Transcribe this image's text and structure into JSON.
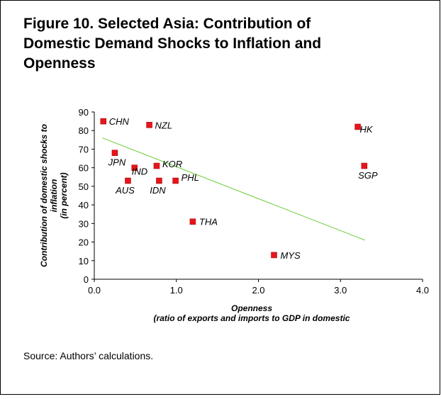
{
  "chart_data": {
    "type": "scatter",
    "title": [
      "Figure 10. Selected Asia: Contribution of",
      "Domestic Demand Shocks to Inflation and",
      "Openness"
    ],
    "x_label": [
      "Openness",
      "(ratio of exports and imports to GDP in domestic"
    ],
    "y_label": [
      "Contribution of domestic shocks to",
      "inflation",
      "(in percent)"
    ],
    "source": "Source: Authors’ calculations.",
    "color": "#e8141b",
    "trend_color": "#66cc33",
    "labels": [
      "CHN",
      "NZL",
      "HK",
      "JPN",
      "IND",
      "KOR",
      "SGP",
      "AUS",
      "IDN",
      "PHL",
      "THA",
      "MYS"
    ],
    "x": [
      0.11,
      0.67,
      3.21,
      0.25,
      0.49,
      0.76,
      3.29,
      0.41,
      0.79,
      0.99,
      1.2,
      2.19
    ],
    "values": [
      85,
      83,
      82,
      68,
      60,
      61,
      61,
      53,
      53,
      53,
      31,
      13
    ],
    "trendline": {
      "x": [
        0.1,
        3.3
      ],
      "y": [
        76,
        21
      ]
    },
    "xlim": [
      0,
      4
    ],
    "ylim": [
      0,
      90
    ],
    "xticks": [
      {
        "value": 0,
        "label": "0.0"
      },
      {
        "value": 1,
        "label": "1.0"
      },
      {
        "value": 2,
        "label": "2.0"
      },
      {
        "value": 3,
        "label": "3.0"
      },
      {
        "value": 4,
        "label": "4.0"
      }
    ],
    "yticks": [
      0,
      10,
      20,
      30,
      40,
      50,
      60,
      70,
      80,
      90
    ]
  }
}
